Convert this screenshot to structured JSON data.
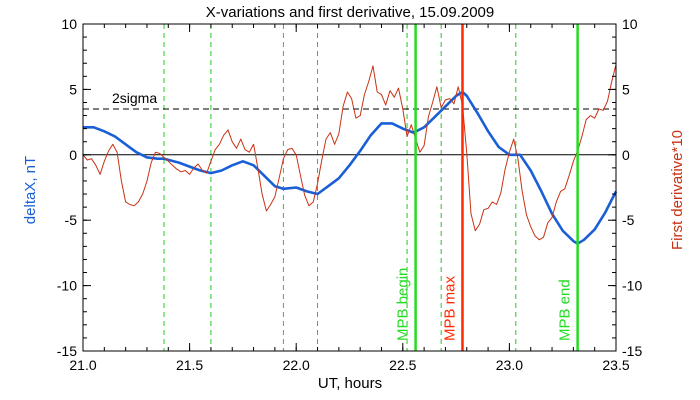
{
  "chart_data": {
    "type": "line",
    "title": "X-variations and first derivative, 15.09.2009",
    "xlabel": "UT, hours",
    "ylabel_left": "deltaX, nT",
    "ylabel_right": "First derivative*10",
    "xlim": [
      21.0,
      23.5
    ],
    "ylim": [
      -15,
      10
    ],
    "y2lim": [
      -15,
      10
    ],
    "x_ticks": [
      "21.0",
      "21.5",
      "22.0",
      "22.5",
      "23.0",
      "23.5"
    ],
    "y_ticks": [
      "10",
      "5",
      "0",
      "-5",
      "-10",
      "-15"
    ],
    "y2_ticks": [
      "10",
      "5",
      "0",
      "-5",
      "-10",
      "-15"
    ],
    "colors": {
      "deltaX": "#1a5fd6",
      "derivative": "#c83214",
      "mpb_begin_end": "#22dd22",
      "mpb_max": "#ff2a00",
      "dashed_green": "#22cc22"
    },
    "threshold": {
      "label": "2sigma",
      "value": 3.5
    },
    "zero_line": 0,
    "dashed_verticals": [
      21.38,
      21.6,
      21.94,
      22.1,
      22.52,
      22.68,
      23.03
    ],
    "markers": [
      {
        "x": 22.56,
        "label": "MPB begin",
        "color_key": "mpb_begin_end"
      },
      {
        "x": 22.78,
        "label": "MPB max",
        "color_key": "mpb_max"
      },
      {
        "x": 23.32,
        "label": "MPB end",
        "color_key": "mpb_begin_end"
      }
    ],
    "series": [
      {
        "key": "deltaX",
        "x": [
          21.0,
          21.05,
          21.1,
          21.15,
          21.2,
          21.25,
          21.3,
          21.35,
          21.38,
          21.45,
          21.5,
          21.55,
          21.6,
          21.65,
          21.7,
          21.75,
          21.8,
          21.85,
          21.9,
          21.94,
          22.0,
          22.05,
          22.1,
          22.15,
          22.2,
          22.25,
          22.3,
          22.35,
          22.4,
          22.45,
          22.5,
          22.55,
          22.6,
          22.65,
          22.7,
          22.75,
          22.78,
          22.8,
          22.85,
          22.9,
          22.95,
          23.0,
          23.05,
          23.1,
          23.15,
          23.2,
          23.25,
          23.3,
          23.32,
          23.35,
          23.4,
          23.45,
          23.5
        ],
        "values": [
          2.1,
          2.1,
          1.8,
          1.4,
          0.8,
          0.2,
          -0.2,
          -0.3,
          -0.3,
          -0.6,
          -0.9,
          -1.2,
          -1.4,
          -1.2,
          -0.8,
          -0.5,
          -0.8,
          -1.6,
          -2.4,
          -2.6,
          -2.5,
          -2.8,
          -3.0,
          -2.4,
          -1.8,
          -0.8,
          0.3,
          1.5,
          2.4,
          2.4,
          2.0,
          1.7,
          2.1,
          2.9,
          3.7,
          4.5,
          4.8,
          4.5,
          3.2,
          1.8,
          0.6,
          0.0,
          0.0,
          -1.2,
          -2.8,
          -4.5,
          -5.8,
          -6.6,
          -6.8,
          -6.5,
          -5.7,
          -4.4,
          -2.8
        ]
      },
      {
        "key": "derivative",
        "x": [
          21.0,
          21.02,
          21.04,
          21.06,
          21.08,
          21.1,
          21.12,
          21.14,
          21.16,
          21.18,
          21.2,
          21.22,
          21.24,
          21.26,
          21.28,
          21.3,
          21.32,
          21.34,
          21.36,
          21.38,
          21.4,
          21.42,
          21.44,
          21.46,
          21.48,
          21.5,
          21.52,
          21.54,
          21.56,
          21.58,
          21.6,
          21.62,
          21.64,
          21.66,
          21.68,
          21.7,
          21.72,
          21.74,
          21.76,
          21.78,
          21.8,
          21.82,
          21.84,
          21.86,
          21.88,
          21.9,
          21.92,
          21.94,
          21.96,
          21.98,
          22.0,
          22.02,
          22.04,
          22.06,
          22.08,
          22.1,
          22.12,
          22.14,
          22.16,
          22.18,
          22.2,
          22.22,
          22.24,
          22.26,
          22.28,
          22.3,
          22.32,
          22.34,
          22.36,
          22.38,
          22.4,
          22.42,
          22.44,
          22.46,
          22.48,
          22.5,
          22.52,
          22.54,
          22.56,
          22.58,
          22.6,
          22.62,
          22.64,
          22.66,
          22.68,
          22.7,
          22.72,
          22.74,
          22.76,
          22.78,
          22.8,
          22.82,
          22.84,
          22.86,
          22.88,
          22.9,
          22.92,
          22.94,
          22.96,
          22.98,
          23.0,
          23.02,
          23.04,
          23.06,
          23.08,
          23.1,
          23.12,
          23.14,
          23.16,
          23.18,
          23.2,
          23.22,
          23.24,
          23.26,
          23.28,
          23.3,
          23.32,
          23.34,
          23.36,
          23.38,
          23.4,
          23.42,
          23.44,
          23.46,
          23.48,
          23.5
        ],
        "values": [
          0.0,
          -0.4,
          -0.3,
          -0.8,
          -1.5,
          -0.5,
          0.3,
          0.8,
          0.2,
          -2.0,
          -3.6,
          -3.8,
          -3.9,
          -3.6,
          -3.0,
          -2.0,
          -0.6,
          0.2,
          0.1,
          -0.2,
          -0.5,
          -0.8,
          -1.1,
          -1.3,
          -1.2,
          -1.5,
          -1.0,
          -0.7,
          -1.2,
          -1.4,
          -0.5,
          0.4,
          0.8,
          1.5,
          1.9,
          1.0,
          0.5,
          1.2,
          0.4,
          0.2,
          0.8,
          -1.0,
          -3.0,
          -4.3,
          -3.8,
          -3.2,
          -1.8,
          -0.3,
          0.4,
          0.5,
          0.0,
          -1.6,
          -3.1,
          -3.9,
          -3.6,
          -2.2,
          -0.4,
          1.2,
          1.7,
          0.8,
          1.6,
          3.7,
          4.8,
          4.3,
          2.8,
          3.0,
          4.6,
          5.6,
          6.8,
          4.8,
          4.6,
          3.8,
          4.9,
          4.4,
          5.1,
          3.5,
          1.4,
          2.3,
          1.2,
          0.2,
          0.7,
          2.9,
          4.0,
          5.2,
          3.6,
          4.2,
          4.3,
          3.9,
          5.2,
          3.8,
          0.1,
          -4.5,
          -5.8,
          -5.3,
          -4.2,
          -4.1,
          -3.6,
          -3.8,
          -2.9,
          -1.1,
          0.2,
          1.2,
          -0.3,
          -2.8,
          -4.6,
          -5.5,
          -6.2,
          -6.5,
          -6.3,
          -5.2,
          -4.8,
          -3.6,
          -2.8,
          -2.6,
          -1.6,
          -0.5,
          0.3,
          1.4,
          2.7,
          3.0,
          2.8,
          3.5,
          3.4,
          4.1,
          5.6,
          6.9
        ]
      }
    ]
  }
}
